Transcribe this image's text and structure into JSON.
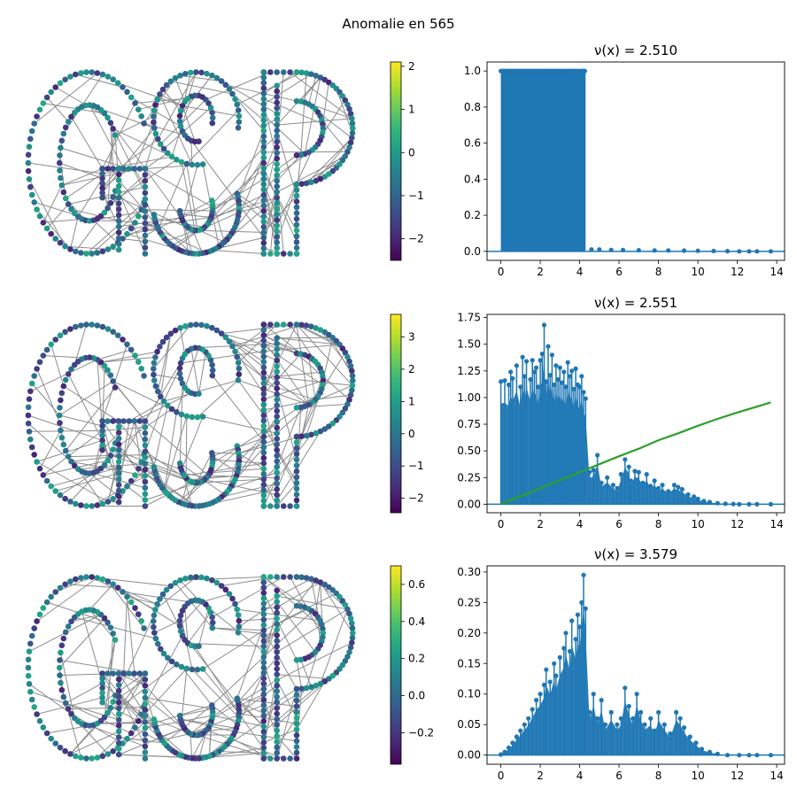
{
  "figure": {
    "title": "Anomalie en 565"
  },
  "colors": {
    "stem": "#1f77b4",
    "curve": "#2ca02c",
    "edge": "#808080",
    "viridis": [
      "#440154",
      "#482878",
      "#3e4989",
      "#31688e",
      "#26828e",
      "#1f9e89",
      "#35b779",
      "#6ece58",
      "#b5de2b",
      "#fde725"
    ]
  },
  "chart_data": [
    {
      "type": "graph-signal",
      "graph_text": "GSP",
      "colorbar": {
        "range": [
          -2.5,
          2.1
        ],
        "ticks": [
          2,
          1,
          0,
          -1,
          -2
        ],
        "tick_labels": [
          "2",
          "1",
          "0",
          "−1",
          "−2"
        ]
      }
    },
    {
      "type": "stem",
      "title": "ν(x) = 2.510",
      "xlim": [
        -0.7,
        14.4
      ],
      "ylim": [
        -0.05,
        1.05
      ],
      "xticks": [
        0,
        2,
        4,
        6,
        8,
        10,
        12,
        14
      ],
      "xtick_labels": [
        "0",
        "2",
        "4",
        "6",
        "8",
        "10",
        "12",
        "14"
      ],
      "yticks": [
        0,
        0.2,
        0.4,
        0.6,
        0.8,
        1.0
      ],
      "ytick_labels": [
        "0.0",
        "0.2",
        "0.4",
        "0.6",
        "0.8",
        "1.0"
      ],
      "note": "dense band of values ≈1.0 for x in [0, 4.3]; near 0 beyond",
      "band": {
        "x": [
          0,
          4.3
        ],
        "y": 1.0
      },
      "tail_points": [
        [
          4.6,
          0.01
        ],
        [
          5.0,
          0.01
        ],
        [
          5.6,
          0.008
        ],
        [
          6.2,
          0.007
        ],
        [
          7.0,
          0.006
        ],
        [
          7.8,
          0.005
        ],
        [
          8.5,
          0.005
        ],
        [
          9.3,
          0.004
        ],
        [
          10.0,
          0.003
        ],
        [
          10.8,
          0.002
        ],
        [
          11.5,
          0.001
        ],
        [
          12.1,
          0.0
        ],
        [
          12.6,
          0.0
        ],
        [
          13.0,
          0.0
        ],
        [
          13.7,
          0.0
        ]
      ]
    },
    {
      "type": "graph-signal",
      "graph_text": "GSP",
      "colorbar": {
        "range": [
          -2.45,
          3.7
        ],
        "ticks": [
          3,
          2,
          1,
          0,
          -1,
          -2
        ],
        "tick_labels": [
          "3",
          "2",
          "1",
          "0",
          "−1",
          "−2"
        ]
      }
    },
    {
      "type": "stem",
      "title": "ν(x) = 2.551",
      "xlim": [
        -0.7,
        14.4
      ],
      "ylim": [
        -0.08,
        1.78
      ],
      "xticks": [
        0,
        2,
        4,
        6,
        8,
        10,
        12,
        14
      ],
      "xtick_labels": [
        "0",
        "2",
        "4",
        "6",
        "8",
        "10",
        "12",
        "14"
      ],
      "yticks": [
        0,
        0.25,
        0.5,
        0.75,
        1.0,
        1.25,
        1.5,
        1.75
      ],
      "ytick_labels": [
        "0.00",
        "0.25",
        "0.50",
        "0.75",
        "1.00",
        "1.25",
        "1.50",
        "1.75"
      ],
      "points": [
        [
          0.0,
          1.15
        ],
        [
          0.2,
          1.16
        ],
        [
          0.4,
          1.12
        ],
        [
          0.5,
          1.24
        ],
        [
          0.6,
          1.18
        ],
        [
          0.8,
          1.3
        ],
        [
          1.0,
          1.1
        ],
        [
          1.1,
          1.38
        ],
        [
          1.2,
          1.2
        ],
        [
          1.3,
          1.34
        ],
        [
          1.5,
          1.17
        ],
        [
          1.6,
          1.35
        ],
        [
          1.7,
          1.24
        ],
        [
          1.8,
          1.28
        ],
        [
          1.9,
          1.1
        ],
        [
          2.0,
          1.35
        ],
        [
          2.1,
          1.41
        ],
        [
          2.2,
          1.68
        ],
        [
          2.3,
          1.15
        ],
        [
          2.4,
          1.48
        ],
        [
          2.5,
          1.21
        ],
        [
          2.6,
          1.4
        ],
        [
          2.7,
          1.12
        ],
        [
          2.8,
          1.3
        ],
        [
          2.9,
          1.17
        ],
        [
          3.0,
          1.28
        ],
        [
          3.1,
          1.14
        ],
        [
          3.2,
          1.24
        ],
        [
          3.3,
          1.1
        ],
        [
          3.4,
          1.33
        ],
        [
          3.5,
          1.2
        ],
        [
          3.6,
          1.25
        ],
        [
          3.7,
          1.08
        ],
        [
          3.8,
          1.27
        ],
        [
          3.9,
          1.12
        ],
        [
          4.0,
          1.1
        ],
        [
          4.1,
          1.2
        ],
        [
          4.2,
          1.05
        ],
        [
          4.3,
          0.99
        ],
        [
          4.5,
          0.3
        ],
        [
          4.7,
          0.32
        ],
        [
          4.9,
          0.46
        ],
        [
          5.1,
          0.2
        ],
        [
          5.4,
          0.25
        ],
        [
          5.7,
          0.18
        ],
        [
          5.9,
          0.15
        ],
        [
          6.1,
          0.28
        ],
        [
          6.3,
          0.42
        ],
        [
          6.5,
          0.35
        ],
        [
          6.6,
          0.22
        ],
        [
          6.8,
          0.31
        ],
        [
          7.0,
          0.3
        ],
        [
          7.2,
          0.2
        ],
        [
          7.4,
          0.28
        ],
        [
          7.6,
          0.17
        ],
        [
          7.8,
          0.22
        ],
        [
          8.0,
          0.15
        ],
        [
          8.2,
          0.18
        ],
        [
          8.5,
          0.12
        ],
        [
          8.8,
          0.18
        ],
        [
          9.0,
          0.16
        ],
        [
          9.2,
          0.14
        ],
        [
          9.5,
          0.09
        ],
        [
          9.8,
          0.07
        ],
        [
          10.0,
          0.05
        ],
        [
          10.3,
          0.03
        ],
        [
          10.6,
          0.02
        ],
        [
          11.0,
          0.01
        ],
        [
          11.4,
          0.005
        ],
        [
          11.8,
          0.002
        ],
        [
          12.1,
          0.0
        ],
        [
          12.6,
          0.0
        ],
        [
          13.0,
          0.0
        ],
        [
          13.7,
          0.0
        ]
      ],
      "curve": [
        [
          0,
          0.0
        ],
        [
          1,
          0.075
        ],
        [
          2,
          0.15
        ],
        [
          3,
          0.225
        ],
        [
          4,
          0.3
        ],
        [
          5,
          0.375
        ],
        [
          6,
          0.45
        ],
        [
          7,
          0.52
        ],
        [
          8,
          0.6
        ],
        [
          9,
          0.665
        ],
        [
          10,
          0.735
        ],
        [
          11,
          0.8
        ],
        [
          12,
          0.86
        ],
        [
          13,
          0.915
        ],
        [
          13.7,
          0.955
        ]
      ]
    },
    {
      "type": "graph-signal",
      "graph_text": "GSP",
      "colorbar": {
        "range": [
          -0.37,
          0.7
        ],
        "ticks": [
          0.6,
          0.4,
          0.2,
          0.0,
          -0.2
        ],
        "tick_labels": [
          "0.6",
          "0.4",
          "0.2",
          "0.0",
          "−0.2"
        ]
      }
    },
    {
      "type": "stem",
      "title": "ν(x) = 3.579",
      "xlim": [
        -0.7,
        14.4
      ],
      "ylim": [
        -0.015,
        0.31
      ],
      "xticks": [
        0,
        2,
        4,
        6,
        8,
        10,
        12,
        14
      ],
      "xtick_labels": [
        "0",
        "2",
        "4",
        "6",
        "8",
        "10",
        "12",
        "14"
      ],
      "yticks": [
        0,
        0.05,
        0.1,
        0.15,
        0.2,
        0.25,
        0.3
      ],
      "ytick_labels": [
        "0.00",
        "0.05",
        "0.10",
        "0.15",
        "0.20",
        "0.25",
        "0.30"
      ],
      "points": [
        [
          0.0,
          0.001
        ],
        [
          0.2,
          0.005
        ],
        [
          0.4,
          0.012
        ],
        [
          0.6,
          0.02
        ],
        [
          0.8,
          0.03
        ],
        [
          1.0,
          0.04
        ],
        [
          1.2,
          0.05
        ],
        [
          1.4,
          0.06
        ],
        [
          1.6,
          0.075
        ],
        [
          1.8,
          0.09
        ],
        [
          2.0,
          0.1
        ],
        [
          2.2,
          0.115
        ],
        [
          2.3,
          0.14
        ],
        [
          2.5,
          0.12
        ],
        [
          2.7,
          0.15
        ],
        [
          2.8,
          0.13
        ],
        [
          3.0,
          0.16
        ],
        [
          3.2,
          0.175
        ],
        [
          3.3,
          0.2
        ],
        [
          3.5,
          0.17
        ],
        [
          3.6,
          0.22
        ],
        [
          3.8,
          0.19
        ],
        [
          3.9,
          0.23
        ],
        [
          4.0,
          0.21
        ],
        [
          4.1,
          0.25
        ],
        [
          4.2,
          0.295
        ],
        [
          4.3,
          0.24
        ],
        [
          4.5,
          0.07
        ],
        [
          4.7,
          0.1
        ],
        [
          4.9,
          0.06
        ],
        [
          5.1,
          0.09
        ],
        [
          5.3,
          0.05
        ],
        [
          5.6,
          0.07
        ],
        [
          5.9,
          0.05
        ],
        [
          6.1,
          0.06
        ],
        [
          6.3,
          0.11
        ],
        [
          6.5,
          0.08
        ],
        [
          6.7,
          0.06
        ],
        [
          6.9,
          0.1
        ],
        [
          7.1,
          0.07
        ],
        [
          7.3,
          0.05
        ],
        [
          7.6,
          0.06
        ],
        [
          7.8,
          0.04
        ],
        [
          8.0,
          0.07
        ],
        [
          8.3,
          0.05
        ],
        [
          8.6,
          0.035
        ],
        [
          8.9,
          0.07
        ],
        [
          9.1,
          0.06
        ],
        [
          9.3,
          0.045
        ],
        [
          9.6,
          0.03
        ],
        [
          9.9,
          0.02
        ],
        [
          10.2,
          0.01
        ],
        [
          10.6,
          0.005
        ],
        [
          11.0,
          0.002
        ],
        [
          11.5,
          0.0
        ],
        [
          12.1,
          0.0
        ],
        [
          12.6,
          0.0
        ],
        [
          13.0,
          0.0
        ],
        [
          13.7,
          0.0
        ]
      ]
    }
  ]
}
